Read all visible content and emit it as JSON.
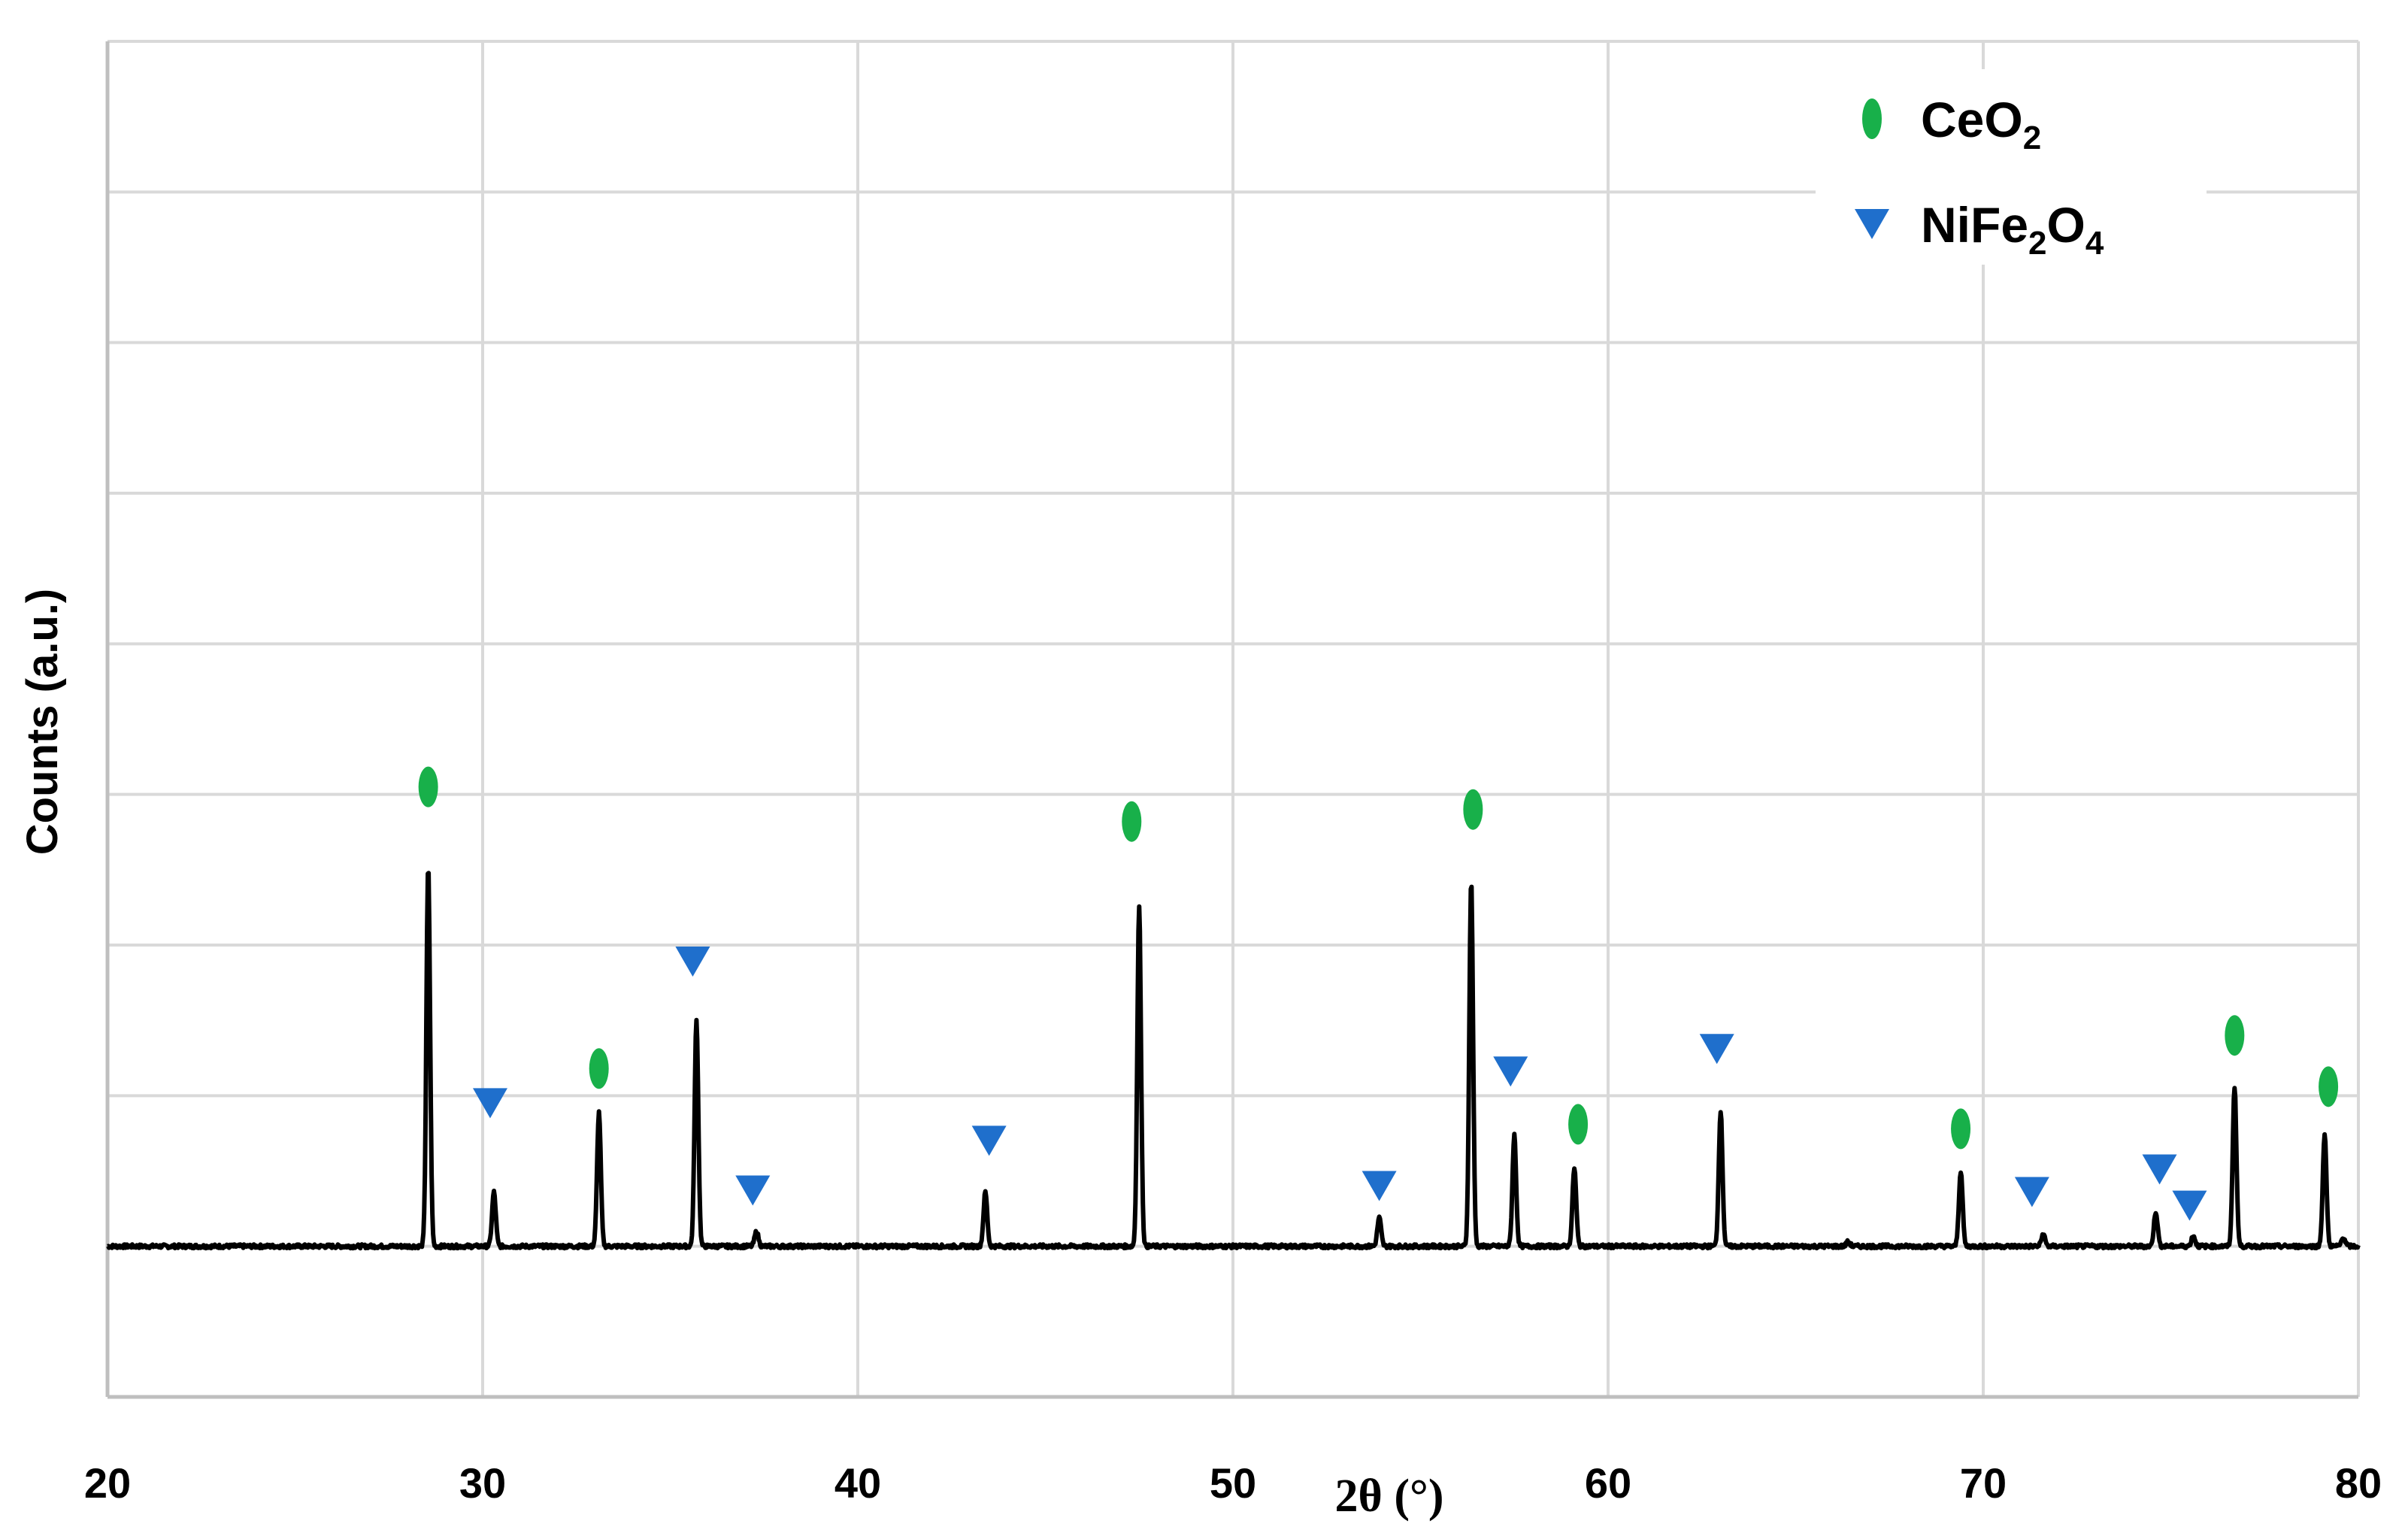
{
  "chart_data": {
    "type": "line",
    "title": "",
    "xlabel": "2θ (°)",
    "ylabel": "Counts (a.u.)",
    "xlim": [
      20,
      80
    ],
    "ylim": [
      -10,
      80
    ],
    "x_ticks": [
      "20",
      "30",
      "40",
      "50",
      "60",
      "70",
      "80"
    ],
    "y_grid_count": 9,
    "grid": true,
    "legend_position": "top-right",
    "baseline": 0,
    "peak_width_deg": 0.07,
    "series": [
      {
        "color": "#000000",
        "peaks": [
          {
            "x": 28.55,
            "y": 25.2
          },
          {
            "x": 30.3,
            "y": 3.6
          },
          {
            "x": 33.1,
            "y": 8.9
          },
          {
            "x": 35.7,
            "y": 15.0
          },
          {
            "x": 37.3,
            "y": 1.0
          },
          {
            "x": 43.4,
            "y": 3.6
          },
          {
            "x": 47.5,
            "y": 22.6
          },
          {
            "x": 53.9,
            "y": 1.9
          },
          {
            "x": 56.35,
            "y": 24.3
          },
          {
            "x": 57.5,
            "y": 7.4
          },
          {
            "x": 59.1,
            "y": 5.2
          },
          {
            "x": 63.0,
            "y": 9.0
          },
          {
            "x": 66.4,
            "y": 0.3
          },
          {
            "x": 69.4,
            "y": 5.0
          },
          {
            "x": 71.6,
            "y": 0.8
          },
          {
            "x": 74.6,
            "y": 2.3
          },
          {
            "x": 75.6,
            "y": 0.7
          },
          {
            "x": 76.7,
            "y": 10.6
          },
          {
            "x": 79.1,
            "y": 7.4
          },
          {
            "x": 79.6,
            "y": 0.6
          }
        ]
      }
    ],
    "phases": [
      {
        "name_base": "CeO",
        "name_parts": [
          {
            "text": "CeO",
            "sub": false
          },
          {
            "text": "2",
            "sub": true
          }
        ],
        "marker": "ellipse",
        "color": "#18b04a",
        "markers": [
          {
            "x": 28.55,
            "y": 30.5
          },
          {
            "x": 33.1,
            "y": 11.8
          },
          {
            "x": 47.3,
            "y": 28.2
          },
          {
            "x": 56.4,
            "y": 29.0
          },
          {
            "x": 59.2,
            "y": 8.1
          },
          {
            "x": 69.4,
            "y": 7.8
          },
          {
            "x": 76.7,
            "y": 14.0
          },
          {
            "x": 79.2,
            "y": 10.6
          }
        ]
      },
      {
        "name_parts": [
          {
            "text": "NiFe",
            "sub": false
          },
          {
            "text": "2",
            "sub": true
          },
          {
            "text": "O",
            "sub": false
          },
          {
            "text": "4",
            "sub": true
          }
        ],
        "marker": "triangle-down",
        "color": "#1f6fcc",
        "markers": [
          {
            "x": 30.2,
            "y": 9.5
          },
          {
            "x": 35.6,
            "y": 18.9
          },
          {
            "x": 37.2,
            "y": 3.7
          },
          {
            "x": 43.5,
            "y": 7.0
          },
          {
            "x": 53.9,
            "y": 4.0
          },
          {
            "x": 57.4,
            "y": 11.6
          },
          {
            "x": 62.9,
            "y": 13.1
          },
          {
            "x": 71.3,
            "y": 3.6
          },
          {
            "x": 74.7,
            "y": 5.1
          },
          {
            "x": 75.5,
            "y": 2.7
          }
        ]
      }
    ]
  }
}
